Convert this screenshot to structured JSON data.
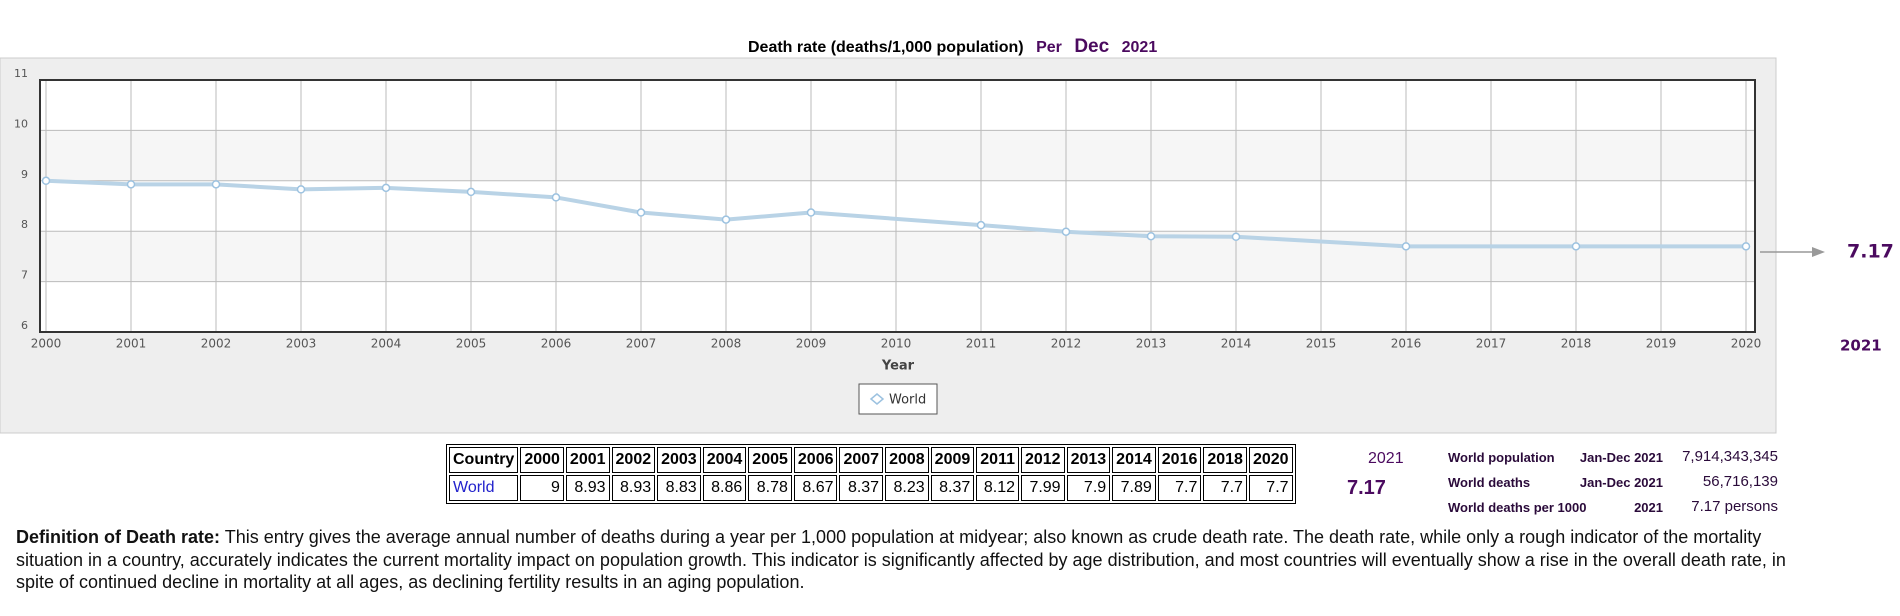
{
  "chart_data": {
    "type": "line",
    "title": "Death rate (deaths/1,000 population)",
    "period_prefix": "Per",
    "period_month": "Dec",
    "period_year": "2021",
    "x_label": "Year",
    "x": [
      2000,
      2001,
      2002,
      2003,
      2004,
      2005,
      2006,
      2007,
      2008,
      2009,
      2011,
      2012,
      2013,
      2014,
      2016,
      2018,
      2020
    ],
    "series": [
      {
        "name": "World",
        "color": "#b9d3e6",
        "values": [
          9,
          8.93,
          8.93,
          8.83,
          8.86,
          8.78,
          8.67,
          8.37,
          8.23,
          8.37,
          8.12,
          7.99,
          7.9,
          7.89,
          7.7,
          7.7,
          7.7
        ]
      }
    ],
    "xlim": [
      2000,
      2020
    ],
    "xticks": [
      2000,
      2001,
      2002,
      2003,
      2004,
      2005,
      2006,
      2007,
      2008,
      2009,
      2010,
      2011,
      2012,
      2013,
      2014,
      2015,
      2016,
      2017,
      2018,
      2019,
      2020
    ],
    "ylim": [
      6,
      11
    ],
    "yticks": [
      6,
      7,
      8,
      9,
      10,
      11
    ],
    "grid": true,
    "projection": {
      "year": 2021,
      "value": 7.17
    }
  },
  "table": {
    "header": "Country"
  },
  "stats": [
    {
      "label": "World population",
      "period": "Jan-Dec 2021",
      "value": "7,914,343,345"
    },
    {
      "label": "World deaths",
      "period": "Jan-Dec 2021",
      "value": "56,716,139"
    },
    {
      "label": "World deaths per 1000",
      "period": "2021",
      "value": "7.17 persons"
    }
  ],
  "definition": {
    "term": "Definition of Death rate:",
    "text": "This entry gives the average annual number of deaths during a year per 1,000 population at midyear; also known as crude death rate. The death rate, while only a rough indicator of the mortality situation in a country, accurately indicates the current mortality impact on population growth. This indicator is significantly affected by age distribution, and most countries will eventually show a rise in the overall death rate, in spite of continued decline in mortality at all ages, as declining fertility results in an aging population."
  }
}
